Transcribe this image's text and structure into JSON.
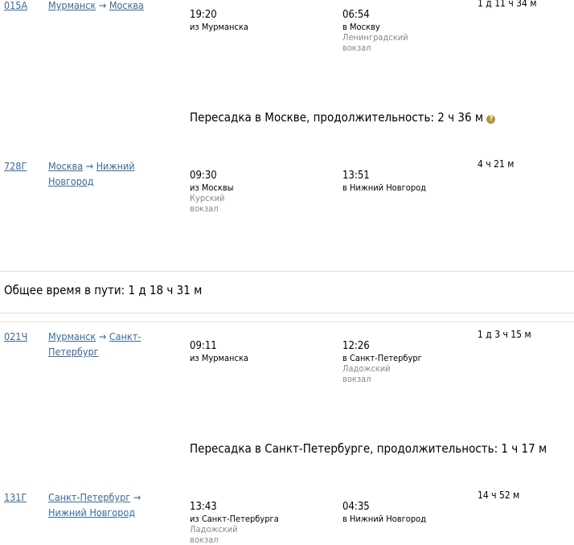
{
  "trips": [
    {
      "segments": [
        {
          "number": "015А",
          "from": "Мурманск",
          "to": "Москва",
          "dep_time": "19:20",
          "dep_city": "из Мурманска",
          "dep_station": "",
          "arr_time": "06:54",
          "arr_city": "в Москву",
          "arr_station": "Ленинградский вокзал",
          "duration": "1 д 11 ч 34 м"
        },
        {
          "number": "728Г",
          "from": "Москва",
          "to": "Нижний Новгород",
          "dep_time": "09:30",
          "dep_city": "из Москвы",
          "dep_station": "Курский вокзал",
          "arr_time": "13:51",
          "arr_city": "в Нижний Новгород",
          "arr_station": "",
          "duration": "4 ч 21 м"
        }
      ],
      "transfer": "Пересадка в Москве, продолжительность: 2 ч 36 м",
      "total": "Общее время в пути: 1 д 18 ч 31 м"
    },
    {
      "segments": [
        {
          "number": "021Ч",
          "from": "Мурманск",
          "to": "Санкт-Петербург",
          "dep_time": "09:11",
          "dep_city": "из Мурманска",
          "dep_station": "",
          "arr_time": "12:26",
          "arr_city": "в Санкт-Петербург",
          "arr_station": "Ладожский вокзал",
          "duration": "1 д 3 ч 15 м"
        },
        {
          "number": "131Г",
          "from": "Санкт-Петербург",
          "to": "Нижний Новгород",
          "dep_time": "13:43",
          "dep_city": "из Санкт-Петербурга",
          "dep_station": "Ладожский вокзал",
          "arr_time": "04:35",
          "arr_city": "в Нижний Новгород",
          "arr_station": "",
          "duration": "14 ч 52 м"
        }
      ],
      "transfer": "Пересадка в Санкт-Петербурге, продолжительность: 1 ч 17 м"
    }
  ],
  "icons": {
    "help": "question-circle-icon"
  },
  "help_color": "#b8933f"
}
